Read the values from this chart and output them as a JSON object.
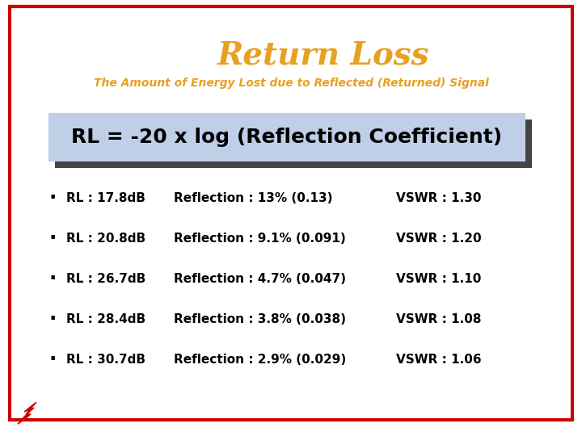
{
  "title": "Return Loss",
  "subtitle": "The Amount of Energy Lost due to Reflected (Returned) Signal",
  "title_color": "#E8A020",
  "subtitle_color": "#E8A020",
  "formula": "RL = -20 x log (Reflection Coefficient)",
  "formula_bg": "#BFCFE8",
  "formula_shadow": "#444444",
  "bg_color": "#FFFFFF",
  "border_color": "#CC0000",
  "text_color": "#000000",
  "bullet_rows": [
    {
      "rl": "RL : 17.8dB",
      "reflection": "Reflection : 13% (0.13)",
      "vswr": "VSWR : 1.30"
    },
    {
      "rl": "RL : 20.8dB",
      "reflection": "Reflection : 9.1% (0.091)",
      "vswr": "VSWR : 1.20"
    },
    {
      "rl": "RL : 26.7dB",
      "reflection": "Reflection : 4.7% (0.047)",
      "vswr": "VSWR : 1.10"
    },
    {
      "rl": "RL : 28.4dB",
      "reflection": "Reflection : 3.8% (0.038)",
      "vswr": "VSWR : 1.08"
    },
    {
      "rl": "RL : 30.7dB",
      "reflection": "Reflection : 2.9% (0.029)",
      "vswr": "VSWR : 1.06"
    }
  ],
  "logo_color": "#CC0000",
  "fig_width": 7.2,
  "fig_height": 5.4,
  "dpi": 100
}
